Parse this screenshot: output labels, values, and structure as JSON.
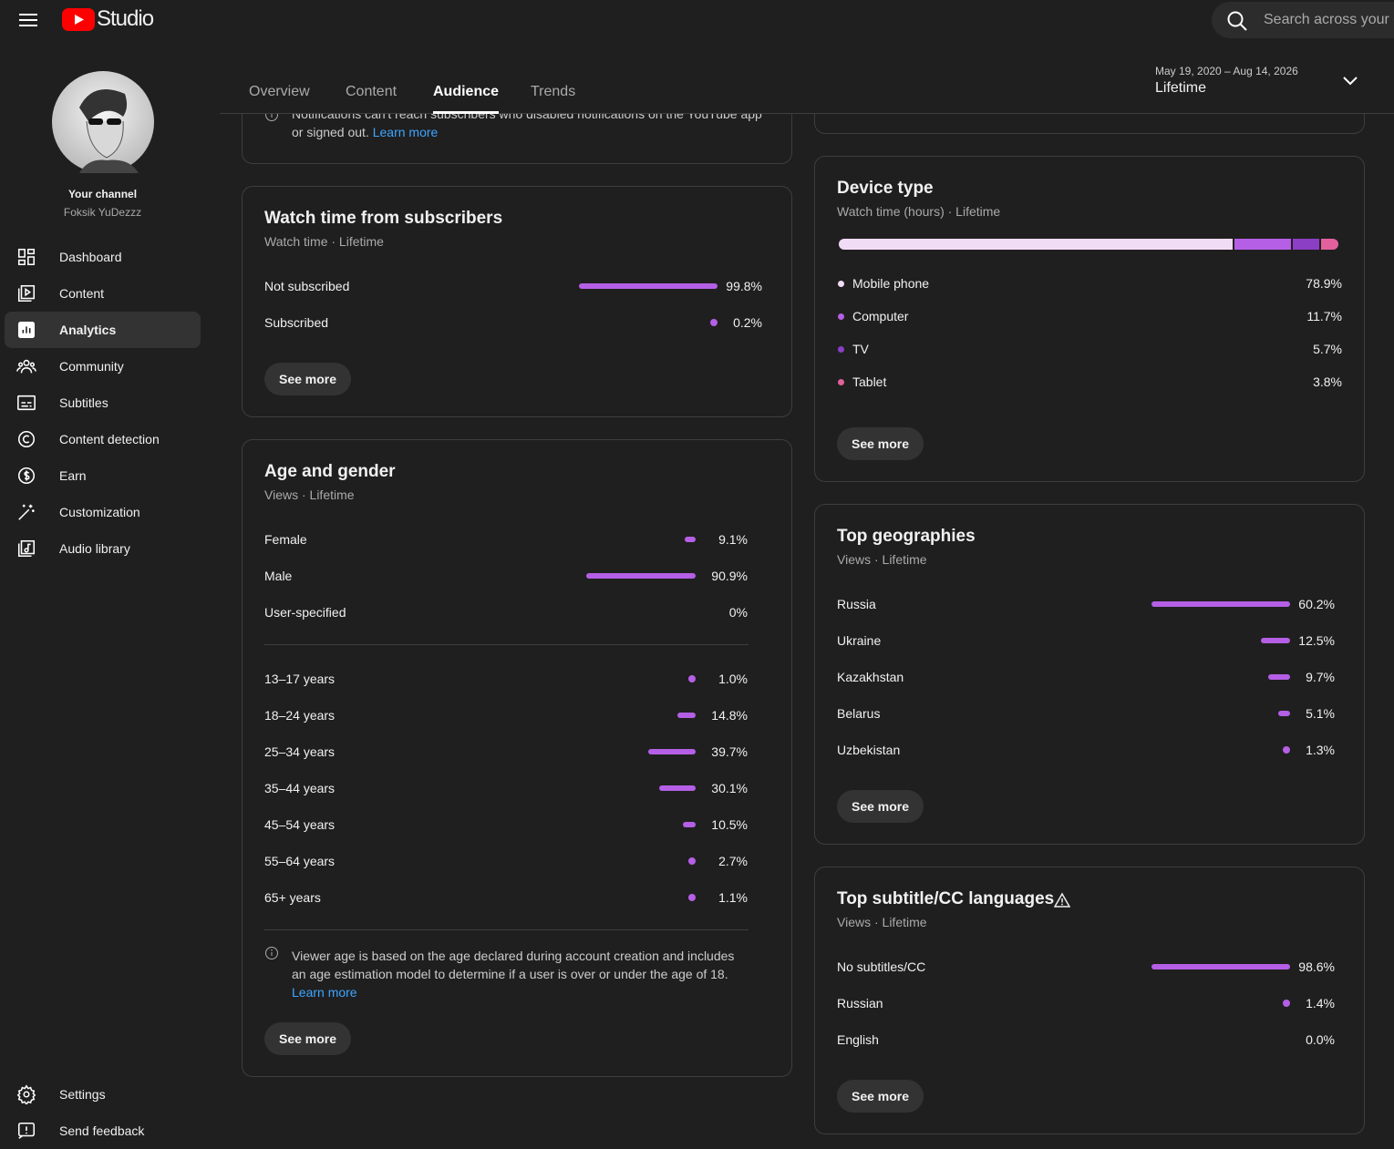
{
  "header": {
    "logo": "Studio",
    "search_placeholder": "Search across your c"
  },
  "sidebar": {
    "channel_label": "Your channel",
    "channel_name": "Foksik YuDezzz",
    "active_item": 2,
    "items": [
      "Dashboard",
      "Content",
      "Analytics",
      "Community",
      "Subtitles",
      "Content detection",
      "Earn",
      "Customization",
      "Audio library"
    ],
    "bottom_items": [
      "Settings",
      "Send feedback"
    ]
  },
  "tabs": {
    "items": [
      "Overview",
      "Content",
      "Audience",
      "Trends"
    ],
    "active": 2
  },
  "date_range": {
    "range": "May 19, 2020 – Aug 14, 2026",
    "label": "Lifetime"
  },
  "notifications_card": {
    "line1": "Notifications can't reach subscribers who disabled notifications on the YouTube app",
    "line2": "or signed out.",
    "link": "Learn more"
  },
  "watch_time": {
    "title": "Watch time from subscribers",
    "subtitle": "Watch time · Lifetime",
    "button": "See more",
    "rows": [
      {
        "label": "Not subscribed",
        "value": 99.8,
        "value_label": "99.8%"
      },
      {
        "label": "Subscribed",
        "value": 0.2,
        "value_label": "0.2%"
      }
    ]
  },
  "age_gender": {
    "title": "Age and gender",
    "subtitle": "Views · Lifetime",
    "button": "See more",
    "gender": [
      {
        "label": "Female",
        "value": 9.1,
        "value_label": "9.1%"
      },
      {
        "label": "Male",
        "value": 90.9,
        "value_label": "90.9%"
      },
      {
        "label": "User-specified",
        "value": 0,
        "value_label": "0%"
      }
    ],
    "ages": [
      {
        "label": "13–17 years",
        "value": 1.0,
        "value_label": "1.0%"
      },
      {
        "label": "18–24 years",
        "value": 14.8,
        "value_label": "14.8%"
      },
      {
        "label": "25–34 years",
        "value": 39.7,
        "value_label": "39.7%"
      },
      {
        "label": "35–44 years",
        "value": 30.1,
        "value_label": "30.1%"
      },
      {
        "label": "45–54 years",
        "value": 10.5,
        "value_label": "10.5%"
      },
      {
        "label": "55–64 years",
        "value": 2.7,
        "value_label": "2.7%"
      },
      {
        "label": "65+ years",
        "value": 1.1,
        "value_label": "1.1%"
      }
    ],
    "note": "Viewer age is based on the age declared during account creation and includes an age estimation model to determine if a user is over or under the age of 18.",
    "link": "Learn more"
  },
  "device_type": {
    "title": "Device type",
    "subtitle": "Watch time (hours) · Lifetime",
    "button": "See more",
    "rows": [
      {
        "label": "Mobile phone",
        "value": 78.9,
        "value_label": "78.9%",
        "color": "#f1dcf5"
      },
      {
        "label": "Computer",
        "value": 11.7,
        "value_label": "11.7%",
        "color": "#b55fe6"
      },
      {
        "label": "TV",
        "value": 5.7,
        "value_label": "5.7%",
        "color": "#8a3fc4"
      },
      {
        "label": "Tablet",
        "value": 3.8,
        "value_label": "3.8%",
        "color": "#e2619c"
      }
    ]
  },
  "geographies": {
    "title": "Top geographies",
    "subtitle": "Views · Lifetime",
    "button": "See more",
    "rows": [
      {
        "label": "Russia",
        "value": 60.2,
        "value_label": "60.2%"
      },
      {
        "label": "Ukraine",
        "value": 12.5,
        "value_label": "12.5%"
      },
      {
        "label": "Kazakhstan",
        "value": 9.7,
        "value_label": "9.7%"
      },
      {
        "label": "Belarus",
        "value": 5.1,
        "value_label": "5.1%"
      },
      {
        "label": "Uzbekistan",
        "value": 1.3,
        "value_label": "1.3%"
      }
    ]
  },
  "subtitle_languages": {
    "title": "Top subtitle/CC languages",
    "subtitle": "Views · Lifetime",
    "button": "See more",
    "rows": [
      {
        "label": "No subtitles/CC",
        "value": 98.6,
        "value_label": "98.6%"
      },
      {
        "label": "Russian",
        "value": 1.4,
        "value_label": "1.4%"
      },
      {
        "label": "English",
        "value": 0,
        "value_label": "0.0%"
      }
    ]
  }
}
